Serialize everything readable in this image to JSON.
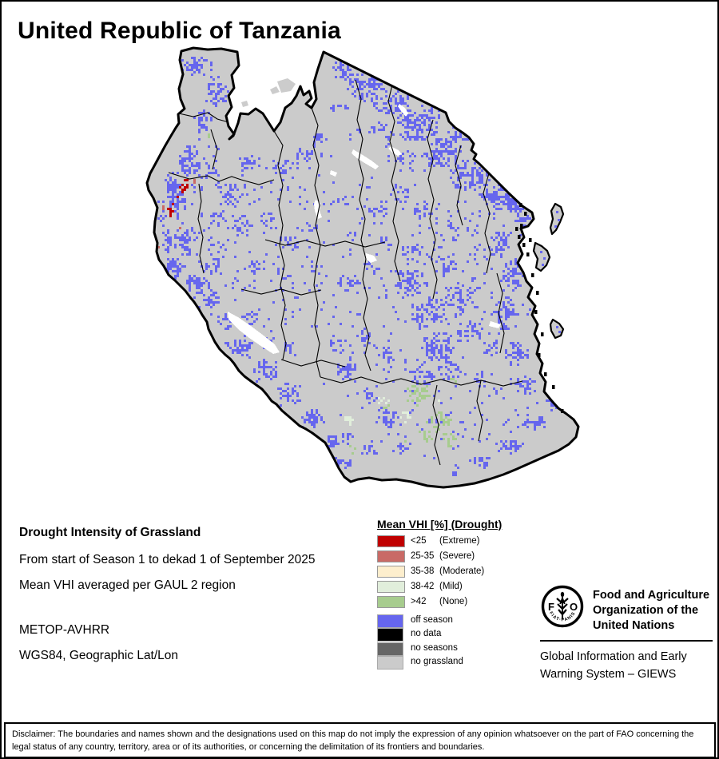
{
  "title": "United Republic of Tanzania",
  "info": {
    "heading": "Drought Intensity of Grassland",
    "period": "From start of Season 1 to dekad 1 of September 2025",
    "method": "Mean VHI averaged per GAUL 2 region",
    "sensor": "METOP-AVHRR",
    "projection": "WGS84, Geographic Lat/Lon"
  },
  "legend": {
    "title": "Mean VHI [%] (Drought)",
    "classes": [
      {
        "range": "<25",
        "label": "(Extreme)",
        "color": "#c00000"
      },
      {
        "range": "25-35",
        "label": "(Severe)",
        "color": "#c96a66"
      },
      {
        "range": "35-38",
        "label": "(Moderate)",
        "color": "#fdeecd"
      },
      {
        "range": "38-42",
        "label": "(Mild)",
        "color": "#e1eedb"
      },
      {
        "range": ">42",
        "label": "(None)",
        "color": "#a7cc8e"
      }
    ],
    "extra_classes": [
      {
        "label": "off season",
        "color": "#6666ee"
      },
      {
        "label": "no data",
        "color": "#000000"
      },
      {
        "label": "no seasons",
        "color": "#666666"
      },
      {
        "label": "no grassland",
        "color": "#cbcbcb"
      }
    ]
  },
  "map": {
    "base_color": "#cbcbcb",
    "water_color": "#ffffff",
    "border_color": "#000000",
    "cloud_color": "#cccccc"
  },
  "footer": {
    "fao_name_lines": [
      "Food and Agriculture",
      "Organization of the",
      "United Nations"
    ],
    "fao_motto": "FIAT·PANIS",
    "fao_letters": [
      "F",
      "A",
      "O"
    ],
    "giews_lines": [
      "Global Information and Early",
      "Warning System – GIEWS"
    ]
  },
  "disclaimer": "Disclaimer: The boundaries and names shown and the designations used on this map do not imply the expression of any opinion whatsoever on the part of FAO concerning the legal status of any country, territory, area or of its authorities, or concerning the delimitation of its frontiers and boundaries."
}
